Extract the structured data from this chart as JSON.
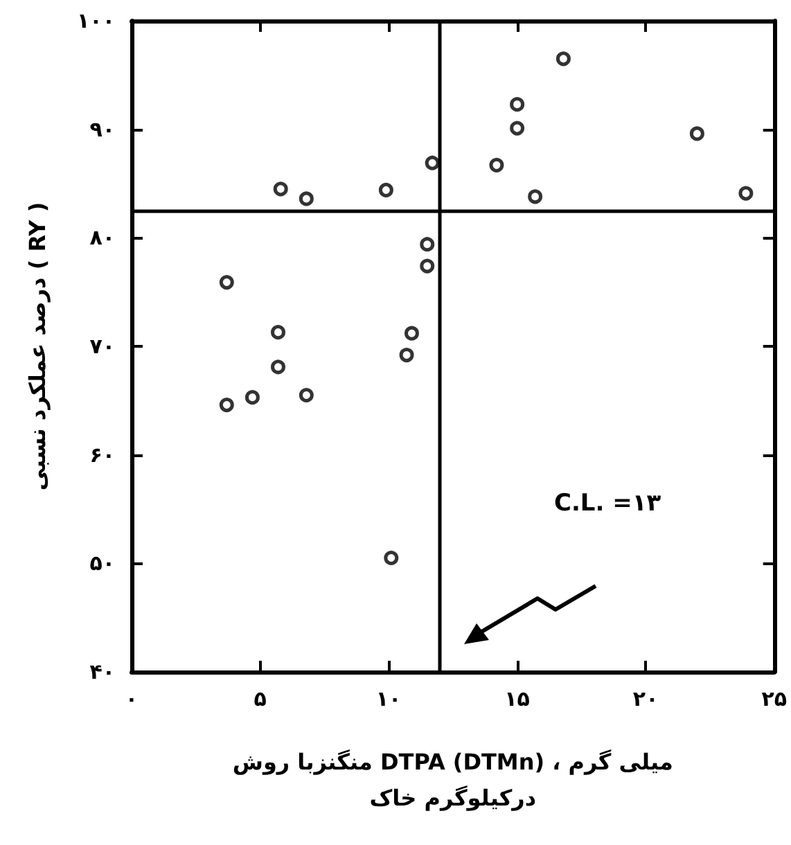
{
  "chart_data": {
    "type": "scatter",
    "xlabel": "منگنزبا روش DTPA (DTMn) ، میلی گرم\nدرکیلوگرم خاک",
    "ylabel": "درصد عملکرد نسبی ( RY )",
    "x": [
      11.7,
      5.8,
      6.8,
      9.9,
      11.5,
      11.5,
      3.7,
      5.7,
      10.9,
      10.7,
      5.7,
      6.8,
      4.7,
      3.7,
      10.1,
      16.8,
      15.0,
      15.0,
      22.0,
      14.2,
      15.7,
      23.9
    ],
    "series": [
      {
        "color": "#000000",
        "values": [
          86.9,
          84.5,
          83.6,
          84.4,
          79.4,
          77.4,
          75.9,
          71.3,
          71.2,
          69.2,
          68.1,
          65.5,
          65.3,
          64.6,
          50.5,
          96.5,
          92.3,
          90.1,
          89.6,
          86.7,
          83.8,
          84.1
        ]
      }
    ],
    "xlim": [
      0,
      25
    ],
    "xticks": [
      {
        "value": 0,
        "label": "۰"
      },
      {
        "value": 5,
        "label": "۵"
      },
      {
        "value": 10,
        "label": "۱۰"
      },
      {
        "value": 15,
        "label": "۱۵"
      },
      {
        "value": 20,
        "label": "۲۰"
      },
      {
        "value": 25,
        "label": "۲۵"
      }
    ],
    "ylim": [
      40,
      100
    ],
    "yticks": [
      {
        "value": 40,
        "label": "۴۰"
      },
      {
        "value": 50,
        "label": "۵۰"
      },
      {
        "value": 60,
        "label": "۶۰"
      },
      {
        "value": 70,
        "label": "۷۰"
      },
      {
        "value": 80,
        "label": "۸۰"
      },
      {
        "value": 90,
        "label": "۹۰"
      },
      {
        "value": 100,
        "label": "۱۰۰"
      }
    ],
    "ref_lines": [
      {
        "axis": "x",
        "value": 12
      },
      {
        "axis": "y",
        "value": 82.5
      }
    ],
    "annotations": [
      "C.L. =۱۳"
    ],
    "grid": false,
    "marker": "circle"
  }
}
